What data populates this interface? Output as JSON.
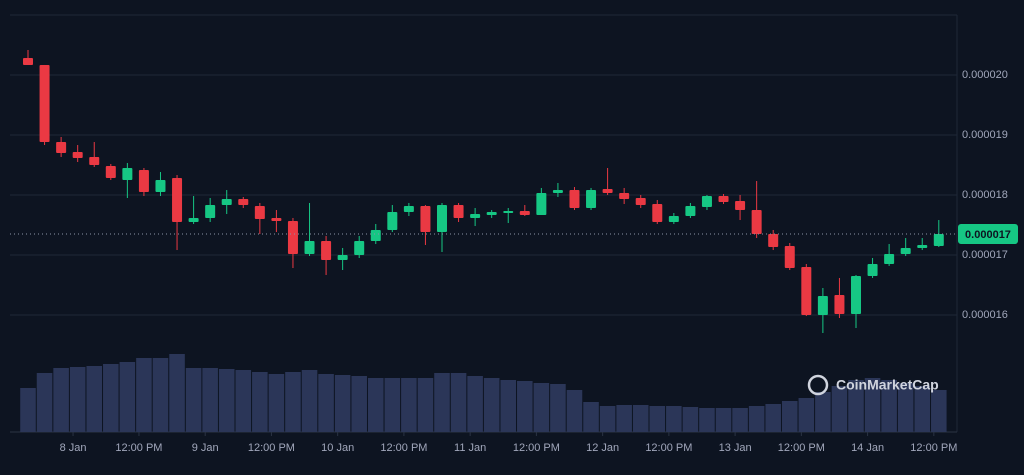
{
  "chart_data": {
    "type": "candlestick",
    "categories": [
      null,
      null,
      null,
      null,
      null,
      null,
      null,
      null,
      null,
      null,
      null,
      null,
      null,
      null,
      null,
      null,
      null,
      null,
      null,
      null,
      null,
      null,
      null,
      null,
      null,
      null,
      null,
      null,
      null,
      null,
      null,
      null,
      null,
      null,
      null,
      null,
      null,
      null,
      null,
      null,
      null,
      null,
      null,
      null,
      null,
      null,
      null,
      null,
      null,
      null,
      null,
      null,
      null,
      null,
      null,
      null
    ],
    "open": [
      2.0283e-05,
      2.0167e-05,
      1.8883e-05,
      1.8717e-05,
      1.8633e-05,
      1.8483e-05,
      1.825e-05,
      1.8417e-05,
      1.805e-05,
      1.8283e-05,
      1.755e-05,
      1.7617e-05,
      1.7833e-05,
      1.7933e-05,
      1.7817e-05,
      1.7617e-05,
      1.7567e-05,
      1.7017e-05,
      1.7233e-05,
      1.6917e-05,
      1.7e-05,
      1.7233e-05,
      1.7417e-05,
      1.7717e-05,
      1.7817e-05,
      1.7383e-05,
      1.7833e-05,
      1.7617e-05,
      1.7667e-05,
      1.77e-05,
      1.7733e-05,
      1.7667e-05,
      1.8033e-05,
      1.8083e-05,
      1.7783e-05,
      1.81e-05,
      1.8033e-05,
      1.795e-05,
      1.785e-05,
      1.755e-05,
      1.765e-05,
      1.78e-05,
      1.7983e-05,
      1.79e-05,
      1.775e-05,
      1.735e-05,
      1.715e-05,
      1.68e-05,
      1.6e-05,
      1.6333e-05,
      1.6017e-05,
      1.665e-05,
      1.685e-05,
      1.7017e-05,
      1.7117e-05,
      1.715e-05
    ],
    "high": [
      2.0417e-05,
      2.0167e-05,
      1.8967e-05,
      1.8833e-05,
      1.8883e-05,
      1.8517e-05,
      1.8533e-05,
      1.845e-05,
      1.8383e-05,
      1.8333e-05,
      1.7983e-05,
      1.795e-05,
      1.8083e-05,
      1.7967e-05,
      1.7867e-05,
      1.775e-05,
      1.7617e-05,
      1.7867e-05,
      1.7317e-05,
      1.7117e-05,
      1.7317e-05,
      1.7517e-05,
      1.7833e-05,
      1.7867e-05,
      1.7833e-05,
      1.7867e-05,
      1.7867e-05,
      1.7783e-05,
      1.775e-05,
      1.7783e-05,
      1.7833e-05,
      1.8117e-05,
      1.82e-05,
      1.8133e-05,
      1.8117e-05,
      1.845e-05,
      1.8117e-05,
      1.8e-05,
      1.7917e-05,
      1.77e-05,
      1.7867e-05,
      1.8e-05,
      1.8017e-05,
      1.8e-05,
      1.8233e-05,
      1.7417e-05,
      1.72e-05,
      1.685e-05,
      1.645e-05,
      1.6617e-05,
      1.6667e-05,
      1.695e-05,
      1.7183e-05,
      1.7283e-05,
      1.7283e-05,
      1.7583e-05
    ],
    "low": [
      2.0167e-05,
      1.8833e-05,
      1.8633e-05,
      1.855e-05,
      1.8467e-05,
      1.825e-05,
      1.795e-05,
      1.7983e-05,
      1.7983e-05,
      1.7083e-05,
      1.7517e-05,
      1.755e-05,
      1.7683e-05,
      1.7783e-05,
      1.735e-05,
      1.7383e-05,
      1.6783e-05,
      1.6983e-05,
      1.6667e-05,
      1.675e-05,
      1.695e-05,
      1.7183e-05,
      1.7383e-05,
      1.765e-05,
      1.7167e-05,
      1.705e-05,
      1.755e-05,
      1.7483e-05,
      1.7617e-05,
      1.7533e-05,
      1.765e-05,
      1.7667e-05,
      1.7967e-05,
      1.775e-05,
      1.775e-05,
      1.8e-05,
      1.785e-05,
      1.7783e-05,
      1.7517e-05,
      1.7517e-05,
      1.7617e-05,
      1.775e-05,
      1.785e-05,
      1.7583e-05,
      1.7283e-05,
      1.7083e-05,
      1.675e-05,
      1.5983e-05,
      1.57e-05,
      1.595e-05,
      1.5783e-05,
      1.6617e-05,
      1.6817e-05,
      1.6983e-05,
      1.7083e-05,
      1.7133e-05
    ],
    "close": [
      2.0167e-05,
      1.8883e-05,
      1.87e-05,
      1.8617e-05,
      1.85e-05,
      1.8283e-05,
      1.845e-05,
      1.805e-05,
      1.825e-05,
      1.755e-05,
      1.7617e-05,
      1.7833e-05,
      1.7933e-05,
      1.7833e-05,
      1.76e-05,
      1.7567e-05,
      1.7017e-05,
      1.7233e-05,
      1.6917e-05,
      1.7e-05,
      1.7233e-05,
      1.7417e-05,
      1.7717e-05,
      1.7817e-05,
      1.7383e-05,
      1.7833e-05,
      1.7617e-05,
      1.7683e-05,
      1.7717e-05,
      1.7733e-05,
      1.7667e-05,
      1.8033e-05,
      1.8083e-05,
      1.7783e-05,
      1.8083e-05,
      1.8033e-05,
      1.7933e-05,
      1.7833e-05,
      1.755e-05,
      1.765e-05,
      1.7817e-05,
      1.7983e-05,
      1.7883e-05,
      1.775e-05,
      1.735e-05,
      1.7133e-05,
      1.6783e-05,
      1.6e-05,
      1.6317e-05,
      1.6017e-05,
      1.665e-05,
      1.685e-05,
      1.7017e-05,
      1.7117e-05,
      1.7167e-05,
      1.735e-05
    ],
    "volume": [
      44,
      59,
      64,
      65,
      66,
      68,
      70,
      74,
      74,
      78,
      64,
      64,
      63,
      62,
      60,
      58,
      60,
      62,
      58,
      57,
      56,
      54,
      54,
      54,
      54,
      59,
      59,
      56,
      54,
      52,
      51,
      49,
      48,
      42,
      30,
      26,
      27,
      27,
      26,
      26,
      25,
      24,
      24,
      24,
      26,
      28,
      31,
      34,
      40,
      46,
      52,
      54,
      52,
      49,
      46,
      42
    ],
    "vlim": [
      0,
      100
    ],
    "up_color": "#16c784",
    "down_color": "#ea3943",
    "volume_color": "#2b3658",
    "ylim": [
      1.55e-05,
      2.1e-05
    ],
    "yticks": [
      {
        "value": 1.6e-05,
        "label": "0.000016"
      },
      {
        "value": 1.7e-05,
        "label": "0.000017"
      },
      {
        "value": 1.8e-05,
        "label": "0.000018"
      },
      {
        "value": 1.9e-05,
        "label": "0.000019"
      },
      {
        "value": 2e-05,
        "label": "0.000020"
      }
    ],
    "xticks": [
      {
        "value": 2.72,
        "label": "8 Jan"
      },
      {
        "value": 6.7,
        "label": "12:00 PM"
      },
      {
        "value": 10.7,
        "label": "9 Jan"
      },
      {
        "value": 14.7,
        "label": "12:00 PM"
      },
      {
        "value": 18.7,
        "label": "10 Jan"
      },
      {
        "value": 22.7,
        "label": "12:00 PM"
      },
      {
        "value": 26.7,
        "label": "11 Jan"
      },
      {
        "value": 30.7,
        "label": "12:00 PM"
      },
      {
        "value": 34.7,
        "label": "12 Jan"
      },
      {
        "value": 38.7,
        "label": "12:00 PM"
      },
      {
        "value": 42.7,
        "label": "13 Jan"
      },
      {
        "value": 46.7,
        "label": "12:00 PM"
      },
      {
        "value": 50.7,
        "label": "14 Jan"
      },
      {
        "value": 54.7,
        "label": "12:00 PM"
      }
    ],
    "current_price": {
      "value": 1.735e-05,
      "label": "0.000017"
    },
    "grid": true,
    "watermark": "CoinMarketCap"
  }
}
